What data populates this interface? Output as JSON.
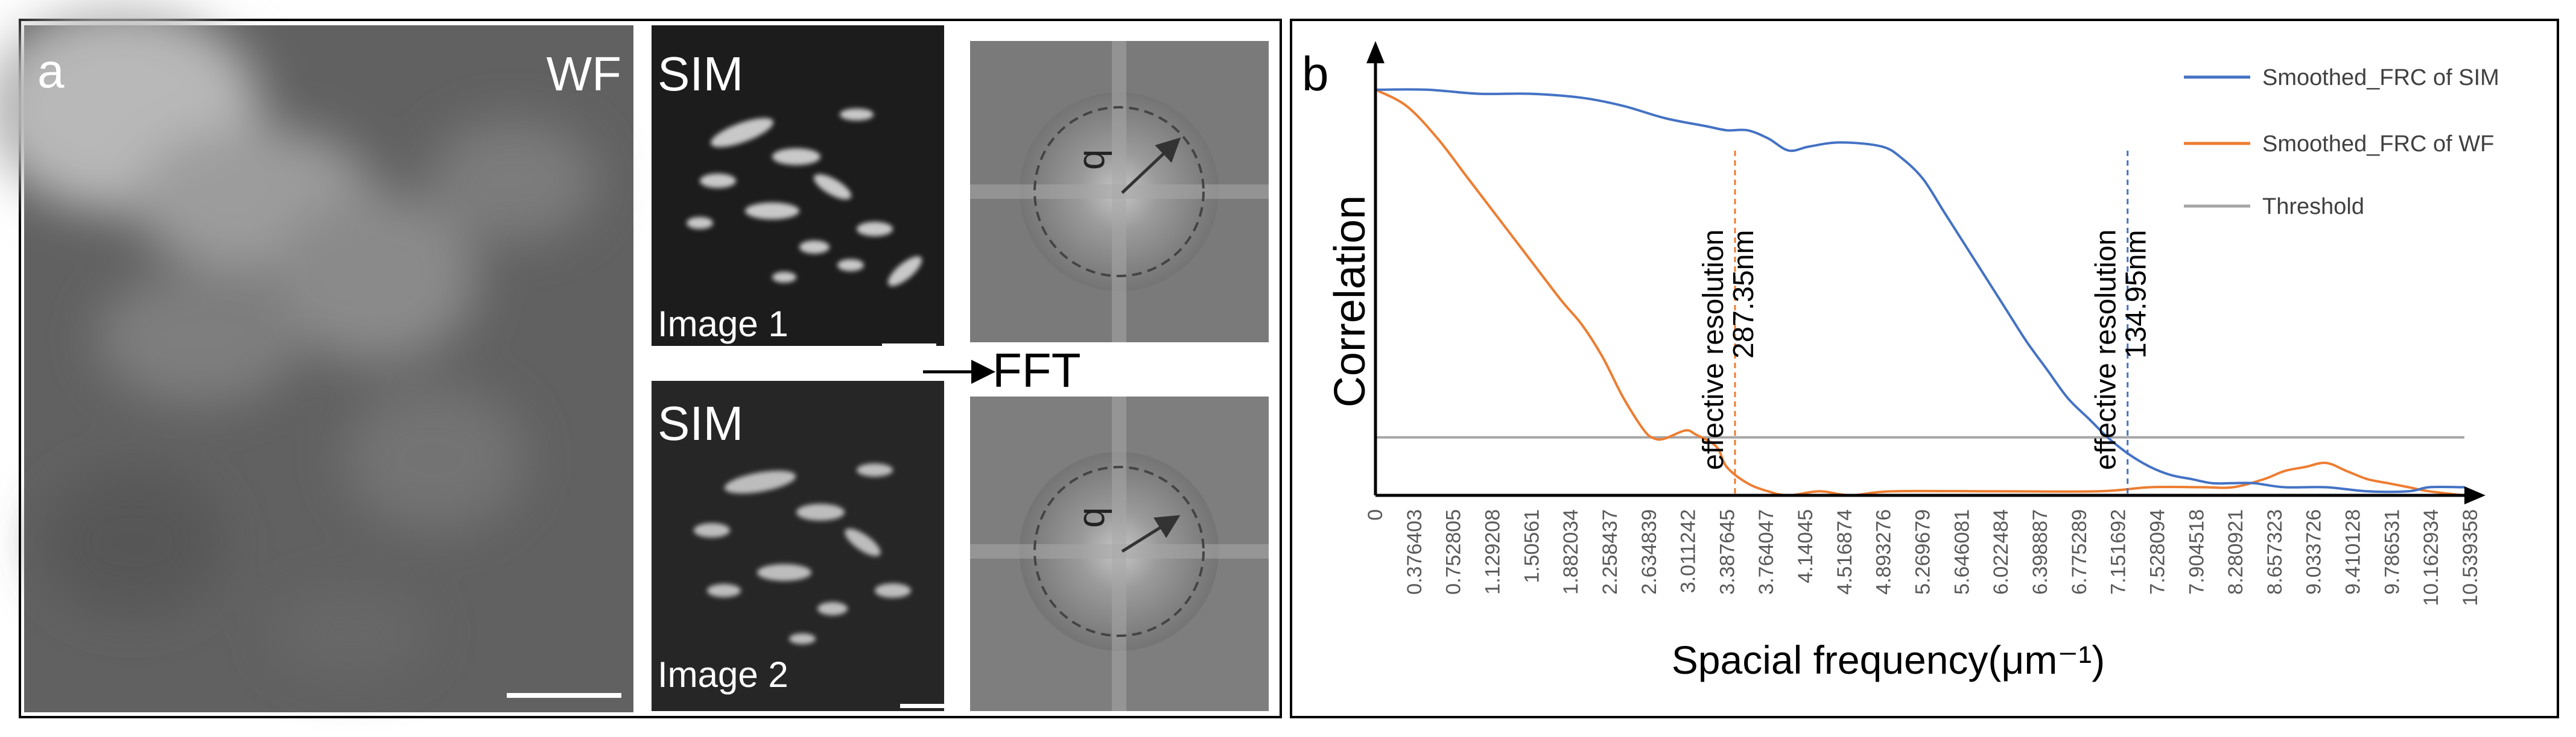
{
  "panel_a": {
    "label": "a",
    "wf_label": "WF",
    "sim_label_1": "SIM",
    "sim_label_2": "SIM",
    "image_1_label": "Image 1",
    "image_2_label": "Image 2",
    "fft_label": "FFT",
    "radius_symbol": "q"
  },
  "chart_data": {
    "type": "line",
    "panel_label": "b",
    "title": "",
    "xlabel": "Spacial frequency(μm⁻¹)",
    "ylabel": "Correlation",
    "xlim": [
      0,
      10.54
    ],
    "ylim": [
      0,
      1.08
    ],
    "x_tick_labels": [
      "0",
      "0.376403",
      "0.752805",
      "1.129208",
      "1.50561",
      "1.882034",
      "2.258437",
      "2.634839",
      "3.011242",
      "3.387645",
      "3.764047",
      "4.14045",
      "4.516874",
      "4.893276",
      "5.269679",
      "5.646081",
      "6.022484",
      "6.398887",
      "6.775289",
      "7.151692",
      "7.528094",
      "7.904518",
      "8.280921",
      "8.657323",
      "9.033726",
      "9.410128",
      "9.786531",
      "10.162934",
      "10.539358"
    ],
    "legend": [
      "Smoothed_FRC of SIM",
      "Smoothed_FRC of WF",
      "Threshold"
    ],
    "legend_position": "top-right",
    "colors": {
      "sim": "#4472c4",
      "wf": "#ed7d31",
      "threshold": "#a6a6a6",
      "axis": "#000000"
    },
    "series": [
      {
        "name": "Smoothed_FRC of SIM",
        "x": [
          0,
          0.5,
          1.0,
          1.5,
          2.0,
          2.4,
          2.8,
          3.2,
          3.4,
          3.6,
          3.8,
          4.0,
          4.2,
          4.5,
          4.9,
          5.1,
          5.3,
          5.5,
          5.7,
          5.9,
          6.1,
          6.3,
          6.5,
          6.7,
          6.9,
          7.1,
          7.3,
          7.5,
          7.7,
          7.9,
          8.1,
          8.3,
          8.5,
          8.8,
          9.2,
          9.6,
          10.0,
          10.2,
          10.54
        ],
        "values": [
          1.0,
          1.0,
          0.99,
          0.99,
          0.98,
          0.96,
          0.93,
          0.91,
          0.9,
          0.9,
          0.88,
          0.85,
          0.86,
          0.87,
          0.86,
          0.83,
          0.78,
          0.7,
          0.62,
          0.54,
          0.46,
          0.38,
          0.31,
          0.24,
          0.19,
          0.14,
          0.1,
          0.07,
          0.05,
          0.04,
          0.03,
          0.03,
          0.03,
          0.02,
          0.02,
          0.01,
          0.01,
          0.02,
          0.02
        ]
      },
      {
        "name": "Smoothed_FRC of WF",
        "x": [
          0,
          0.3,
          0.6,
          0.9,
          1.2,
          1.5,
          1.8,
          2.0,
          2.2,
          2.4,
          2.6,
          2.7,
          2.8,
          3.0,
          3.1,
          3.3,
          3.4,
          3.6,
          3.8,
          4.0,
          4.3,
          4.6,
          5.0,
          6.0,
          7.0,
          7.5,
          8.0,
          8.3,
          8.6,
          8.8,
          9.0,
          9.2,
          9.4,
          9.6,
          9.8,
          10.0,
          10.2,
          10.54
        ],
        "values": [
          1.0,
          0.96,
          0.88,
          0.78,
          0.68,
          0.58,
          0.48,
          0.42,
          0.34,
          0.24,
          0.16,
          0.14,
          0.14,
          0.16,
          0.15,
          0.12,
          0.07,
          0.03,
          0.01,
          0.0,
          0.01,
          0.0,
          0.01,
          0.01,
          0.01,
          0.02,
          0.02,
          0.02,
          0.04,
          0.06,
          0.07,
          0.08,
          0.06,
          0.04,
          0.03,
          0.02,
          0.01,
          0.0
        ]
      },
      {
        "name": "Threshold",
        "x": [
          0,
          10.54
        ],
        "values": [
          0.143,
          0.143
        ]
      }
    ],
    "annotations": [
      {
        "line1": "effective resolution",
        "line2": "287.35nm",
        "x": 3.48,
        "color": "#ed7d31"
      },
      {
        "line1": "effective resolution",
        "line2": "134.95nm",
        "x": 7.28,
        "color": "#4472c4"
      }
    ]
  }
}
